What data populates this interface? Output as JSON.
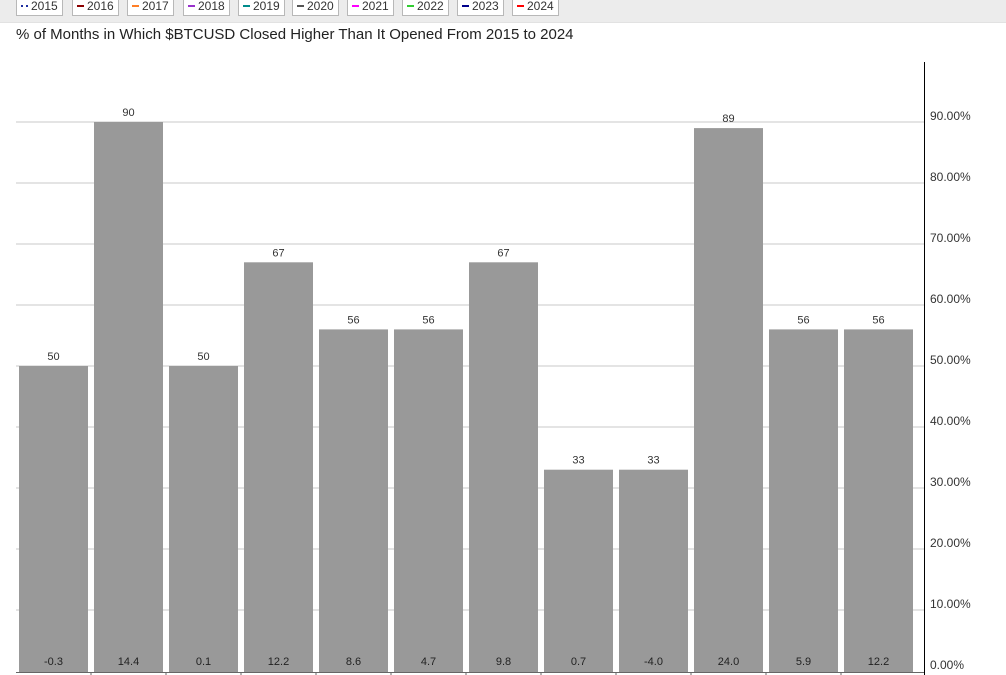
{
  "legend": [
    {
      "label": "2015",
      "color": "#1f2fa0",
      "style": "dotted"
    },
    {
      "label": "2016",
      "color": "#8b0000",
      "style": "solid"
    },
    {
      "label": "2017",
      "color": "#ff7f27",
      "style": "solid"
    },
    {
      "label": "2018",
      "color": "#9932cc",
      "style": "solid"
    },
    {
      "label": "2019",
      "color": "#008b8b",
      "style": "solid"
    },
    {
      "label": "2020",
      "color": "#555555",
      "style": "solid"
    },
    {
      "label": "2021",
      "color": "#ff00ff",
      "style": "solid"
    },
    {
      "label": "2022",
      "color": "#32cd32",
      "style": "solid"
    },
    {
      "label": "2023",
      "color": "#00008b",
      "style": "solid"
    },
    {
      "label": "2024",
      "color": "#ff0000",
      "style": "solid"
    }
  ],
  "chart_data": {
    "type": "bar",
    "title": "% of Months in Which $BTCUSD Closed Higher Than It Opened From 2015 to 2024",
    "values": [
      50,
      90,
      50,
      67,
      56,
      56,
      67,
      33,
      33,
      89,
      56,
      56
    ],
    "value_labels": [
      "50",
      "90",
      "50",
      "67",
      "56",
      "56",
      "67",
      "33",
      "33",
      "89",
      "56",
      "56"
    ],
    "bottom_labels": [
      "-0.3",
      "14.4",
      "0.1",
      "12.2",
      "8.6",
      "4.7",
      "9.8",
      "0.7",
      "-4.0",
      "24.0",
      "5.9",
      "12.2"
    ],
    "y_ticks": [
      0,
      10,
      20,
      30,
      40,
      50,
      60,
      70,
      80,
      90
    ],
    "y_tick_labels": [
      "0.00%",
      "10.00%",
      "20.00%",
      "30.00%",
      "40.00%",
      "50.00%",
      "60.00%",
      "70.00%",
      "80.00%",
      "90.00%"
    ],
    "ylim": [
      0,
      100
    ],
    "y_axis_position": "right",
    "grid": true,
    "bar_color": "#999999"
  }
}
